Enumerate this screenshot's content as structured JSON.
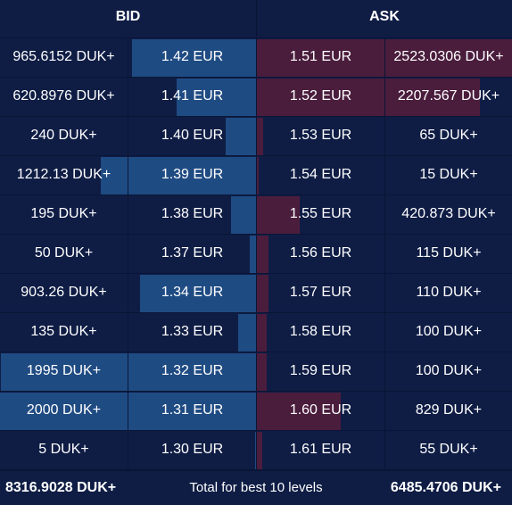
{
  "header": {
    "bid_label": "BID",
    "ask_label": "ASK"
  },
  "book": {
    "colors": {
      "bid_bar": "#1f4b83",
      "ask_bar": "#4b1d3d",
      "background": "#0f1d45"
    },
    "levels": [
      {
        "bid_amount": "965.6152 DUK+",
        "bid_price": "1.42 EUR",
        "bid_depth": 0.484,
        "ask_price": "1.51 EUR",
        "ask_amount": "2523.0306 DUK+",
        "ask_depth": 1.0
      },
      {
        "bid_amount": "620.8976 DUK+",
        "bid_price": "1.41 EUR",
        "bid_depth": 0.311,
        "ask_price": "1.52 EUR",
        "ask_amount": "2207.567 DUK+",
        "ask_depth": 0.875
      },
      {
        "bid_amount": "240 DUK+",
        "bid_price": "1.40 EUR",
        "bid_depth": 0.12,
        "ask_price": "1.53 EUR",
        "ask_amount": "65 DUK+",
        "ask_depth": 0.026
      },
      {
        "bid_amount": "1212.13 DUK+",
        "bid_price": "1.39 EUR",
        "bid_depth": 0.606,
        "ask_price": "1.54 EUR",
        "ask_amount": "15 DUK+",
        "ask_depth": 0.006
      },
      {
        "bid_amount": "195 DUK+",
        "bid_price": "1.38 EUR",
        "bid_depth": 0.098,
        "ask_price": "1.55 EUR",
        "ask_amount": "420.873 DUK+",
        "ask_depth": 0.167
      },
      {
        "bid_amount": "50 DUK+",
        "bid_price": "1.37 EUR",
        "bid_depth": 0.025,
        "ask_price": "1.56 EUR",
        "ask_amount": "115 DUK+",
        "ask_depth": 0.046
      },
      {
        "bid_amount": "903.26 DUK+",
        "bid_price": "1.34 EUR",
        "bid_depth": 0.452,
        "ask_price": "1.57 EUR",
        "ask_amount": "110 DUK+",
        "ask_depth": 0.044
      },
      {
        "bid_amount": "135 DUK+",
        "bid_price": "1.33 EUR",
        "bid_depth": 0.068,
        "ask_price": "1.58 EUR",
        "ask_amount": "100 DUK+",
        "ask_depth": 0.04
      },
      {
        "bid_amount": "1995 DUK+",
        "bid_price": "1.32 EUR",
        "bid_depth": 0.998,
        "ask_price": "1.59 EUR",
        "ask_amount": "100 DUK+",
        "ask_depth": 0.04
      },
      {
        "bid_amount": "2000 DUK+",
        "bid_price": "1.31 EUR",
        "bid_depth": 1.0,
        "ask_price": "1.60 EUR",
        "ask_amount": "829 DUK+",
        "ask_depth": 0.329
      },
      {
        "bid_amount": "5 DUK+",
        "bid_price": "1.30 EUR",
        "bid_depth": 0.003,
        "ask_price": "1.61 EUR",
        "ask_amount": "55 DUK+",
        "ask_depth": 0.022
      }
    ]
  },
  "footer": {
    "bid_total": "8316.9028 DUK+",
    "label": "Total for best 10 levels",
    "ask_total": "6485.4706 DUK+"
  }
}
